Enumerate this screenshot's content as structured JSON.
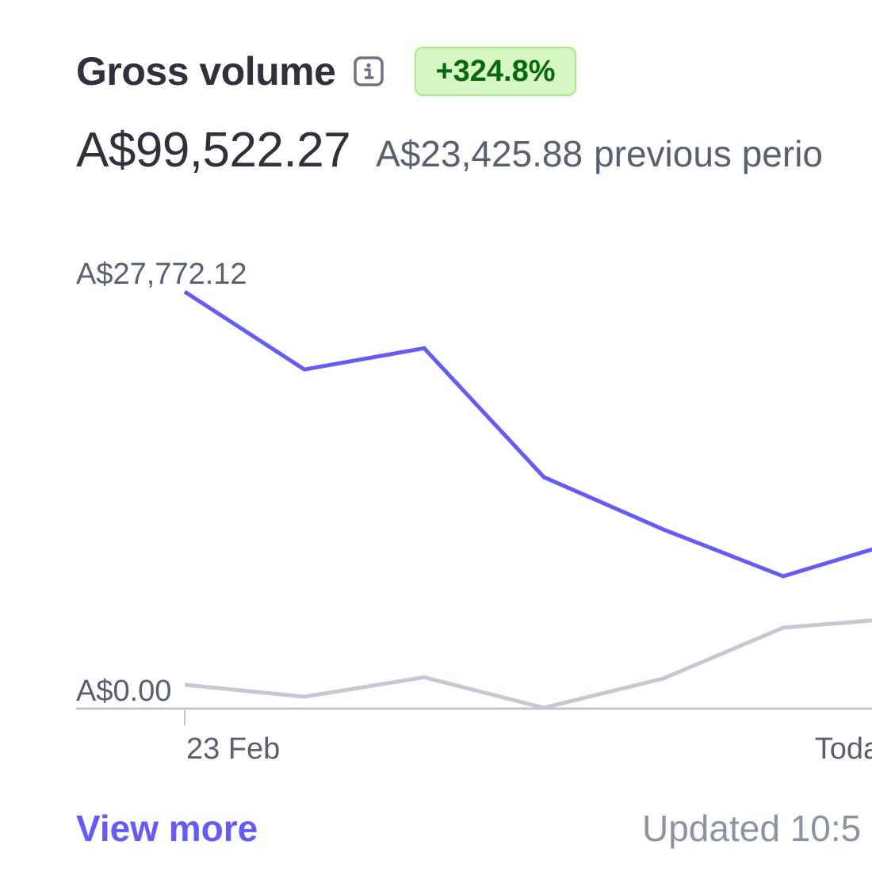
{
  "header": {
    "title": "Gross volume",
    "info_icon": "info-icon",
    "change_badge": "+324.8%",
    "badge_color": "#05690d",
    "badge_bg": "#d7f7c2"
  },
  "summary": {
    "amount": "A$99,522.27",
    "previous_amount": "A$23,425.88",
    "previous_label": "previous perio"
  },
  "footer": {
    "view_more": "View more",
    "updated": "Updated 10:5"
  },
  "colors": {
    "current": "#635bff",
    "previous": "#c5c9d3",
    "axis": "#c0c5d0",
    "text_muted": "#596171"
  },
  "chart_data": {
    "type": "line",
    "title": "",
    "xlabel": "",
    "ylabel": "",
    "ylim": [
      0,
      27772.12
    ],
    "y_tick_labels": [
      "A$27,772.12",
      "A$0.00"
    ],
    "x_tick_labels": [
      "23 Feb",
      "Toda"
    ],
    "x": [
      0,
      1,
      2,
      3,
      4,
      5,
      6
    ],
    "x_tick_indices": [
      0,
      5.25
    ],
    "legend": "none",
    "grid": false,
    "series": [
      {
        "values": [
          27772.12,
          22580,
          24000,
          15400,
          11900,
          8780,
          11200
        ]
      },
      {
        "values": [
          1540,
          740,
          2040,
          0,
          1960,
          5350,
          6000
        ]
      }
    ]
  }
}
